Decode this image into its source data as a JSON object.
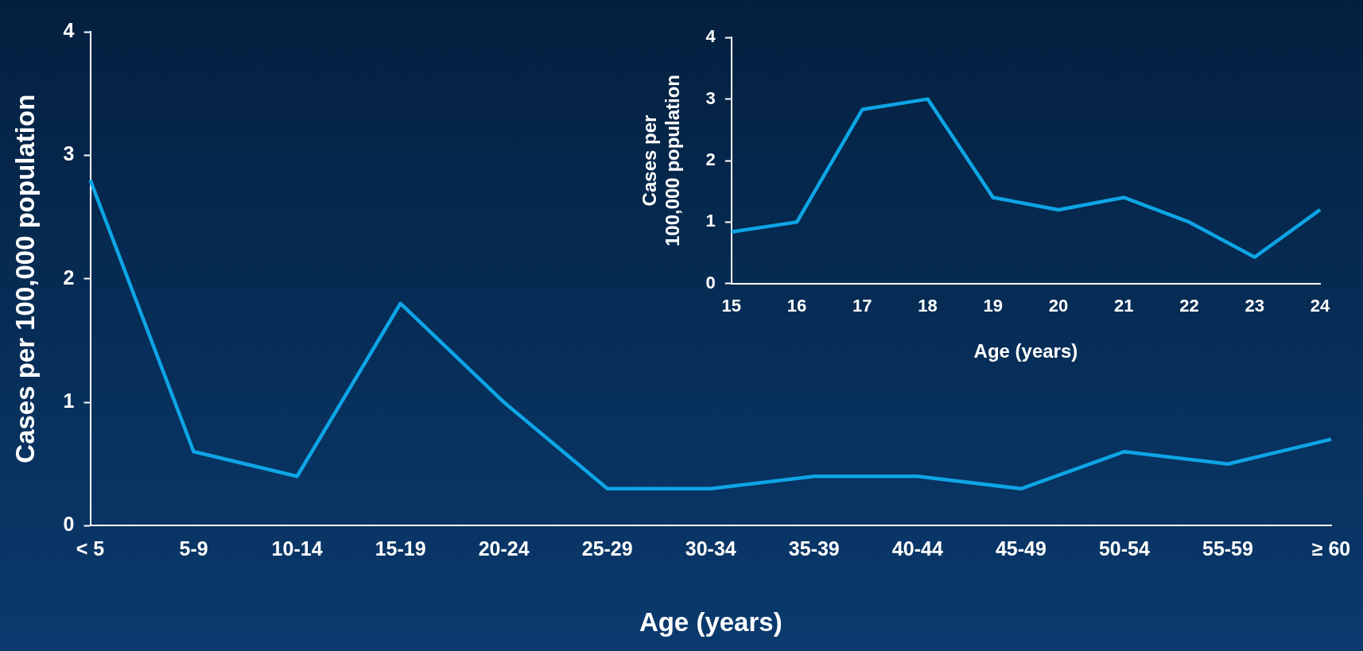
{
  "chart_data": [
    {
      "type": "line",
      "xlabel": "Age (years)",
      "ylabel": "Cases per 100,000 population",
      "categories": [
        "< 5",
        "5-9",
        "10-14",
        "15-19",
        "20-24",
        "25-29",
        "30-34",
        "35-39",
        "40-44",
        "45-49",
        "50-54",
        "55-59",
        "≥ 60"
      ],
      "series": [
        {
          "color": "#0ea5e6",
          "values": [
            2.8,
            0.6,
            0.4,
            1.8,
            1.0,
            0.3,
            0.3,
            0.4,
            0.4,
            0.3,
            0.6,
            0.5,
            0.7
          ]
        }
      ],
      "ylim": [
        0,
        4
      ],
      "yticks": [
        0,
        1,
        2,
        3,
        4
      ],
      "grid": false,
      "legend": false,
      "marker": "none"
    },
    {
      "type": "line",
      "xlabel": "Age (years)",
      "ylabel": "Cases per\n100,000 population",
      "categories": [
        "15",
        "16",
        "17",
        "18",
        "19",
        "20",
        "21",
        "22",
        "23",
        "24"
      ],
      "series": [
        {
          "color": "#0ea5e6",
          "values": [
            0.84,
            1.0,
            2.83,
            3.0,
            1.4,
            1.2,
            1.4,
            1.0,
            0.43,
            1.2
          ]
        }
      ],
      "ylim": [
        0,
        4
      ],
      "yticks": [
        0,
        1,
        2,
        3,
        4
      ],
      "grid": false,
      "legend": false,
      "marker": "none"
    }
  ]
}
